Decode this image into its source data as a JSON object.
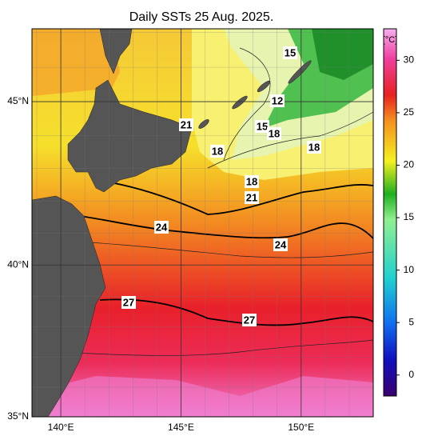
{
  "title": "Daily SSTs 25 Aug. 2025.",
  "map": {
    "lonlim": [
      138.8,
      153
    ],
    "latlim": [
      35,
      47.1
    ],
    "lonticks": [
      {
        "value": 140,
        "label": "140°E"
      },
      {
        "value": 145,
        "label": "145°E"
      },
      {
        "value": 150,
        "label": "150°E"
      }
    ],
    "latticks": [
      {
        "value": 35,
        "label": "35°N"
      },
      {
        "value": 40,
        "label": "40°N"
      },
      {
        "value": 45,
        "label": "45°N"
      }
    ],
    "contour_labels": [
      15,
      12,
      15,
      18,
      18,
      21,
      18,
      18,
      21,
      24,
      24,
      27,
      27
    ]
  },
  "colorbar": {
    "unit": "[°C]",
    "lim": [
      -2,
      33
    ],
    "ticks": [
      0,
      5,
      10,
      15,
      20,
      25,
      30
    ]
  }
}
